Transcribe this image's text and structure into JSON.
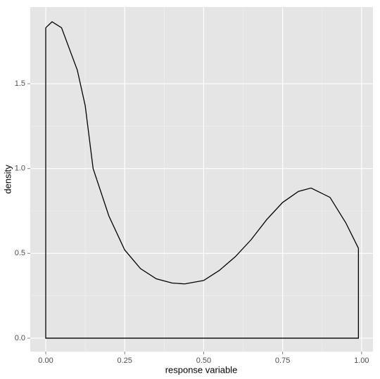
{
  "chart_data": {
    "type": "line",
    "x_label": "response variable",
    "y_label": "density",
    "series": [
      {
        "color": "#000000",
        "x": [
          0,
          0.02,
          0.05,
          0.1,
          0.125,
          0.15,
          0.2,
          0.25,
          0.3,
          0.35,
          0.4,
          0.44,
          0.5,
          0.55,
          0.6,
          0.65,
          0.7,
          0.75,
          0.8,
          0.84,
          0.9,
          0.95,
          0.99
        ],
        "values": [
          1.83,
          1.865,
          1.83,
          1.58,
          1.37,
          1.0,
          0.72,
          0.52,
          0.41,
          0.35,
          0.325,
          0.32,
          0.34,
          0.4,
          0.48,
          0.58,
          0.7,
          0.8,
          0.865,
          0.885,
          0.83,
          0.68,
          0.53
        ]
      }
    ],
    "xlim": [
      -0.049,
      1.036
    ],
    "ylim": [
      -0.079,
      1.952
    ],
    "xticks": [
      {
        "value": 0,
        "label": "0.00"
      },
      {
        "value": 0.25,
        "label": "0.25"
      },
      {
        "value": 0.5,
        "label": "0.50"
      },
      {
        "value": 0.75,
        "label": "0.75"
      },
      {
        "value": 1,
        "label": "1.00"
      }
    ],
    "yticks": [
      {
        "value": 0,
        "label": "0.0"
      },
      {
        "value": 0.5,
        "label": "0.5"
      },
      {
        "value": 1,
        "label": "1.0"
      },
      {
        "value": 1.5,
        "label": "1.5"
      }
    ],
    "grid": true,
    "panel_color": "#e5e5e5"
  }
}
